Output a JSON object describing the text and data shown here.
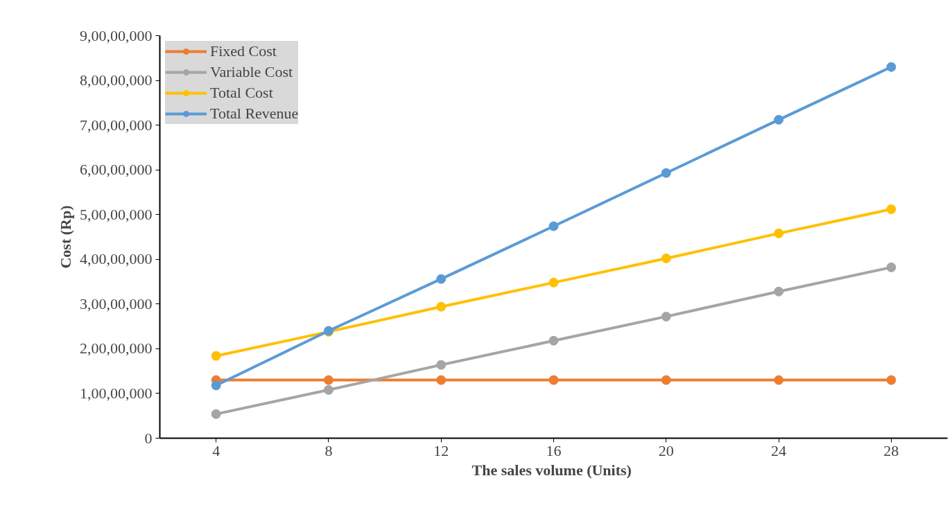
{
  "chart_data": {
    "type": "line",
    "xlabel": "The sales volume  (Units)",
    "ylabel": "Cost (Rp)",
    "categories": [
      "4",
      "8",
      "12",
      "16",
      "20",
      "24",
      "28"
    ],
    "series": [
      {
        "name": "Fixed Cost",
        "color": "#ed7d31",
        "values": [
          13000000,
          13000000,
          13000000,
          13000000,
          13000000,
          13000000,
          13000000
        ]
      },
      {
        "name": "Variable Cost",
        "color": "#a5a5a5",
        "values": [
          5400000,
          10800000,
          16400000,
          21800000,
          27200000,
          32800000,
          38200000
        ]
      },
      {
        "name": "Total Cost",
        "color": "#ffc000",
        "values": [
          18400000,
          23800000,
          29400000,
          34800000,
          40200000,
          45800000,
          51200000
        ]
      },
      {
        "name": "Total Revenue",
        "color": "#5b9bd5",
        "values": [
          11800000,
          24000000,
          35600000,
          47400000,
          59300000,
          71200000,
          83000000
        ]
      }
    ],
    "ylim": [
      0,
      90000000
    ],
    "yticks": [
      0,
      {
        "value": 10000000,
        "label": "1,00,00,000"
      },
      {
        "value": 20000000,
        "label": "2,00,00,000"
      },
      {
        "value": 30000000,
        "label": "3,00,00,000"
      },
      {
        "value": 40000000,
        "label": "4,00,00,000"
      },
      {
        "value": 50000000,
        "label": "5,00,00,000"
      },
      {
        "value": 60000000,
        "label": "6,00,00,000"
      },
      {
        "value": 70000000,
        "label": "7,00,00,000"
      },
      {
        "value": 80000000,
        "label": "8,00,00,000"
      },
      {
        "value": 90000000,
        "label": "9,00,00,000"
      }
    ],
    "marker": "circle",
    "line_style": "solid",
    "grid": false,
    "legend": "top left"
  }
}
